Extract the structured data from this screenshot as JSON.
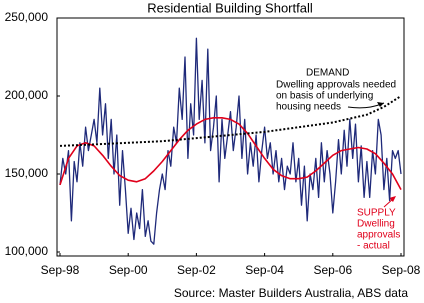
{
  "chart_data": {
    "type": "line",
    "title": "Residential Building Shortfall",
    "source": "Source: Master Builders Australia, ABS data",
    "demand_label": [
      "DEMAND",
      "Dwelling approvals needed",
      "on basis of underlying",
      "housing needs"
    ],
    "supply_label": [
      "SUPPLY",
      "Dwelling",
      "approvals",
      "- actual"
    ],
    "xlim": [
      "1998-09",
      "2008-09"
    ],
    "xticks": [
      {
        "value": "1998-09",
        "label": "Sep-98"
      },
      {
        "value": "2000-09",
        "label": "Sep-00"
      },
      {
        "value": "2002-09",
        "label": "Sep-02"
      },
      {
        "value": "2004-09",
        "label": "Sep-04"
      },
      {
        "value": "2006-09",
        "label": "Sep-06"
      },
      {
        "value": "2008-09",
        "label": "Sep-08"
      }
    ],
    "ylim": [
      100000,
      250000
    ],
    "yticks": [
      {
        "value": 100000,
        "label": "100,000"
      },
      {
        "value": 150000,
        "label": "150,000"
      },
      {
        "value": 200000,
        "label": "200,000"
      },
      {
        "value": 250000,
        "label": "250,000"
      }
    ],
    "grid": false,
    "series": [
      {
        "color": "#1f2a7a",
        "style": "solid",
        "width": 1.3,
        "x": [
          "1998-09",
          "1998-10",
          "1998-11",
          "1998-12",
          "1999-01",
          "1999-02",
          "1999-03",
          "1999-04",
          "1999-05",
          "1999-06",
          "1999-07",
          "1999-08",
          "1999-09",
          "1999-10",
          "1999-11",
          "1999-12",
          "2000-01",
          "2000-02",
          "2000-03",
          "2000-04",
          "2000-05",
          "2000-06",
          "2000-07",
          "2000-08",
          "2000-09",
          "2000-10",
          "2000-11",
          "2000-12",
          "2001-01",
          "2001-02",
          "2001-03",
          "2001-04",
          "2001-05",
          "2001-06",
          "2001-07",
          "2001-08",
          "2001-09",
          "2001-10",
          "2001-11",
          "2001-12",
          "2002-01",
          "2002-02",
          "2002-03",
          "2002-04",
          "2002-05",
          "2002-06",
          "2002-07",
          "2002-08",
          "2002-09",
          "2002-10",
          "2002-11",
          "2002-12",
          "2003-01",
          "2003-02",
          "2003-03",
          "2003-04",
          "2003-05",
          "2003-06",
          "2003-07",
          "2003-08",
          "2003-09",
          "2003-10",
          "2003-11",
          "2003-12",
          "2004-01",
          "2004-02",
          "2004-03",
          "2004-04",
          "2004-05",
          "2004-06",
          "2004-07",
          "2004-08",
          "2004-09",
          "2004-10",
          "2004-11",
          "2004-12",
          "2005-01",
          "2005-02",
          "2005-03",
          "2005-04",
          "2005-05",
          "2005-06",
          "2005-07",
          "2005-08",
          "2005-09",
          "2005-10",
          "2005-11",
          "2005-12",
          "2006-01",
          "2006-02",
          "2006-03",
          "2006-04",
          "2006-05",
          "2006-06",
          "2006-07",
          "2006-08",
          "2006-09",
          "2006-10",
          "2006-11",
          "2006-12",
          "2007-01",
          "2007-02",
          "2007-03",
          "2007-04",
          "2007-05",
          "2007-06",
          "2007-07",
          "2007-08",
          "2007-09",
          "2007-10",
          "2007-11",
          "2007-12",
          "2008-01",
          "2008-02",
          "2008-03",
          "2008-04",
          "2008-05",
          "2008-06",
          "2008-07",
          "2008-08",
          "2008-09"
        ],
        "values": [
          143000,
          160000,
          150000,
          165000,
          120000,
          158000,
          145000,
          170000,
          155000,
          180000,
          165000,
          175000,
          185000,
          170000,
          205000,
          175000,
          195000,
          160000,
          185000,
          150000,
          175000,
          130000,
          165000,
          140000,
          112000,
          128000,
          108000,
          125000,
          115000,
          140000,
          110000,
          120000,
          107000,
          105000,
          125000,
          140000,
          150000,
          140000,
          165000,
          155000,
          180000,
          170000,
          205000,
          185000,
          225000,
          160000,
          195000,
          175000,
          237000,
          185000,
          210000,
          170000,
          230000,
          165000,
          180000,
          200000,
          145000,
          185000,
          160000,
          175000,
          190000,
          165000,
          180000,
          200000,
          160000,
          185000,
          150000,
          170000,
          155000,
          175000,
          145000,
          165000,
          180000,
          160000,
          170000,
          150000,
          165000,
          145000,
          160000,
          140000,
          155000,
          150000,
          170000,
          145000,
          160000,
          130000,
          155000,
          120000,
          150000,
          140000,
          160000,
          135000,
          170000,
          145000,
          165000,
          150000,
          125000,
          145000,
          172000,
          150000,
          178000,
          155000,
          185000,
          160000,
          182000,
          145000,
          168000,
          135000,
          158000,
          135000,
          165000,
          150000,
          185000,
          175000,
          140000,
          160000,
          133000,
          165000,
          160000,
          165000,
          150000
        ]
      },
      {
        "color": "#e0001b",
        "style": "solid",
        "width": 1.6,
        "x": [
          "1998-09",
          "1998-12",
          "1999-03",
          "1999-06",
          "1999-09",
          "1999-12",
          "2000-03",
          "2000-06",
          "2000-09",
          "2000-12",
          "2001-03",
          "2001-06",
          "2001-09",
          "2001-12",
          "2002-03",
          "2002-06",
          "2002-09",
          "2002-12",
          "2003-03",
          "2003-06",
          "2003-09",
          "2003-12",
          "2004-03",
          "2004-06",
          "2004-09",
          "2004-12",
          "2005-03",
          "2005-06",
          "2005-09",
          "2005-12",
          "2006-03",
          "2006-06",
          "2006-09",
          "2006-12",
          "2007-03",
          "2007-06",
          "2007-09",
          "2007-12",
          "2008-03",
          "2008-06",
          "2008-09"
        ],
        "values": [
          143000,
          160000,
          168000,
          170000,
          168000,
          162000,
          155000,
          149000,
          146000,
          145000,
          147000,
          152000,
          158000,
          165000,
          172000,
          178000,
          182000,
          185000,
          186000,
          186000,
          185000,
          182000,
          176000,
          168000,
          160000,
          153000,
          149000,
          147000,
          147000,
          148000,
          152000,
          157000,
          162000,
          165000,
          166000,
          167000,
          166000,
          163000,
          157000,
          150000,
          140000
        ]
      },
      {
        "color": "#000000",
        "style": "dotted",
        "width": 2,
        "x": [
          "1998-09",
          "1999-09",
          "2000-09",
          "2001-09",
          "2002-09",
          "2003-09",
          "2004-09",
          "2005-09",
          "2006-09",
          "2007-09",
          "2008-03",
          "2008-09"
        ],
        "values": [
          168000,
          169000,
          170000,
          171000,
          173000,
          175000,
          177000,
          180000,
          183000,
          188000,
          193000,
          200000
        ]
      }
    ]
  }
}
